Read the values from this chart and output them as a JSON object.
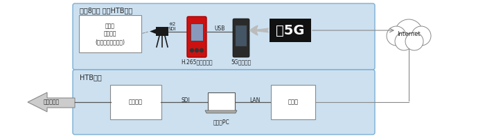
{
  "bg_color": "#ffffff",
  "top_box_color": "#cce0f0",
  "top_box_edge": "#7bafd4",
  "bottom_box_color": "#cce0f0",
  "bottom_box_edge": "#7bafd4",
  "top_title": "大通8丁目 雪のHTB広場",
  "bottom_title": "HTB本社",
  "text_color": "#222222",
  "label_camera": "大雪像\nウポポイ\n(民族共生象徴空間)",
  "label_encoder": "H.265エンコーダ",
  "label_5g_terminal": "5Gプレ端末",
  "label_internet": "Internet",
  "label_sdi1": "※2\nSDI",
  "label_usb": "USB",
  "label_broadcast": "放送設備",
  "label_reception_pc": "受信用PC",
  "label_optical": "光回線",
  "label_sdi2": "SDI",
  "label_lan": "LAN",
  "label_terrestrial": "地上波放送",
  "label_5g_sign": "》5G"
}
